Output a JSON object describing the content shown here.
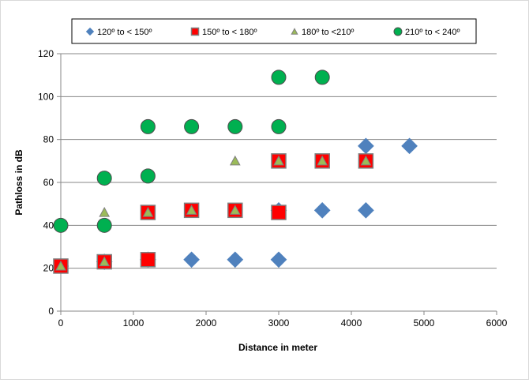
{
  "chart_data": {
    "type": "scatter",
    "title": "",
    "xlabel": "Distance in meter",
    "ylabel": "Pathloss in dB",
    "xlim": [
      0,
      6000
    ],
    "ylim": [
      0,
      120
    ],
    "x_ticks": [
      "0",
      "1000",
      "2000",
      "3000",
      "4000",
      "5000",
      "6000"
    ],
    "y_ticks": [
      "0",
      "20",
      "40",
      "60",
      "80",
      "100",
      "120"
    ],
    "grid": "horizontal",
    "legend_position": "top",
    "series": [
      {
        "name": "120º to <  150º",
        "marker": "diamond",
        "color": "#4f81bd",
        "points": [
          [
            0,
            21
          ],
          [
            600,
            23
          ],
          [
            1200,
            24
          ],
          [
            1800,
            24
          ],
          [
            2400,
            24
          ],
          [
            3000,
            24
          ],
          [
            3000,
            47
          ],
          [
            3600,
            47
          ],
          [
            4200,
            47
          ],
          [
            4200,
            77
          ],
          [
            4800,
            77
          ]
        ]
      },
      {
        "name": "150º to < 180º",
        "marker": "square",
        "color": "#ff0000",
        "points": [
          [
            0,
            21
          ],
          [
            600,
            23
          ],
          [
            1200,
            24
          ],
          [
            1200,
            46
          ],
          [
            1800,
            47
          ],
          [
            2400,
            47
          ],
          [
            3000,
            46
          ],
          [
            3000,
            70
          ],
          [
            3600,
            70
          ],
          [
            4200,
            70
          ]
        ]
      },
      {
        "name": "180º to <210º",
        "marker": "triangle",
        "color": "#9bbb59",
        "points": [
          [
            0,
            21
          ],
          [
            600,
            23
          ],
          [
            600,
            46
          ],
          [
            1200,
            46
          ],
          [
            1800,
            47
          ],
          [
            2400,
            47
          ],
          [
            2400,
            70
          ],
          [
            3000,
            70
          ],
          [
            3600,
            70
          ],
          [
            4200,
            70
          ]
        ]
      },
      {
        "name": "210º to < 240º",
        "marker": "circle",
        "color": "#00b050",
        "points": [
          [
            0,
            40
          ],
          [
            600,
            40
          ],
          [
            600,
            62
          ],
          [
            1200,
            63
          ],
          [
            1200,
            86
          ],
          [
            1800,
            86
          ],
          [
            2400,
            86
          ],
          [
            3000,
            86
          ],
          [
            3000,
            109
          ],
          [
            3600,
            109
          ]
        ]
      }
    ]
  }
}
